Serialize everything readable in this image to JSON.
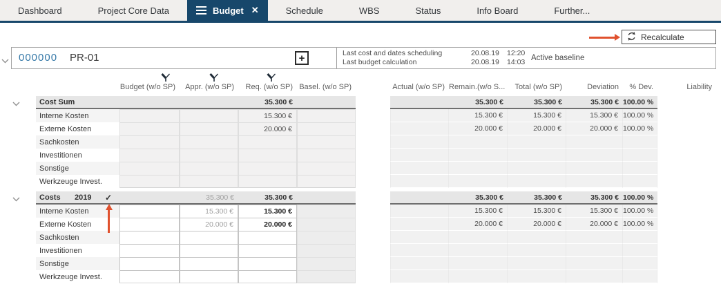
{
  "tabs": [
    {
      "label": "Dashboard",
      "active": false
    },
    {
      "label": "Project Core Data",
      "active": false
    },
    {
      "label": "Budget",
      "active": true
    },
    {
      "label": "Schedule",
      "active": false
    },
    {
      "label": "WBS",
      "active": false
    },
    {
      "label": "Status",
      "active": false
    },
    {
      "label": "Info Board",
      "active": false
    },
    {
      "label": "Further...",
      "active": false
    }
  ],
  "toolbar": {
    "recalculate_label": "Recalculate"
  },
  "icons": {
    "active_tab_menu": "hamburger-icon",
    "active_tab_close": "close-icon",
    "recalculate": "refresh-circular-arrows-icon",
    "project_expand": "chevron-down-icon",
    "add": "plus-icon",
    "column_marker": "funnel-icon",
    "year_confirmed": "check-icon",
    "annotations": "orange-pointer-arrows"
  },
  "project": {
    "number": "000000",
    "name": "PR-01",
    "scheduling": [
      {
        "label": "Last cost and dates scheduling",
        "date": "20.08.19",
        "time": "12:20"
      },
      {
        "label": "Last budget calculation",
        "date": "20.08.19",
        "time": "14:03"
      }
    ],
    "baseline_label": "Active baseline"
  },
  "table": {
    "columns_left": [
      "Budget (w/o SP)",
      "Appr. (w/o SP)",
      "Req. (w/o SP)",
      "Basel. (w/o SP)"
    ],
    "columns_right": [
      "Actual (w/o SP)",
      "Remain.(w/o S...",
      "Total (w/o SP)",
      "Deviation",
      "% Dev.",
      "Liability"
    ],
    "groups": [
      {
        "name": "Cost Sum",
        "year": "",
        "checked": false,
        "header": {
          "budget": "",
          "appr": "",
          "req": "35.300 €",
          "basel": "",
          "actual": "",
          "remain": "35.300 €",
          "total": "35.300 €",
          "deviation": "35.300 €",
          "pdev": "100.00 %",
          "liability": ""
        },
        "rows": [
          {
            "label": "Interne Kosten",
            "budget": "",
            "appr": "",
            "req": "15.300 €",
            "basel": "",
            "actual": "",
            "remain": "15.300 €",
            "total": "15.300 €",
            "deviation": "15.300 €",
            "pdev": "100.00 %",
            "liability": ""
          },
          {
            "label": "Externe Kosten",
            "budget": "",
            "appr": "",
            "req": "20.000 €",
            "basel": "",
            "actual": "",
            "remain": "20.000 €",
            "total": "20.000 €",
            "deviation": "20.000 €",
            "pdev": "100.00 %",
            "liability": ""
          },
          {
            "label": "Sachkosten"
          },
          {
            "label": "Investitionen"
          },
          {
            "label": "Sonstige"
          },
          {
            "label": "Werkzeuge Invest."
          }
        ]
      },
      {
        "name": "Costs",
        "year": "2019",
        "checked": true,
        "header": {
          "budget": "",
          "appr": "35.300 €",
          "req": "35.300 €",
          "basel": "",
          "actual": "",
          "remain": "35.300 €",
          "total": "35.300 €",
          "deviation": "35.300 €",
          "pdev": "100.00 %",
          "liability": ""
        },
        "rows": [
          {
            "label": "Interne Kosten",
            "budget": "",
            "appr": "15.300 €",
            "req": "15.300 €",
            "basel": "",
            "actual": "",
            "remain": "15.300 €",
            "total": "15.300 €",
            "deviation": "15.300 €",
            "pdev": "100.00 %",
            "liability": ""
          },
          {
            "label": "Externe Kosten",
            "budget": "",
            "appr": "20.000 €",
            "req": "20.000 €",
            "basel": "",
            "actual": "",
            "remain": "20.000 €",
            "total": "20.000 €",
            "deviation": "20.000 €",
            "pdev": "100.00 %",
            "liability": ""
          },
          {
            "label": "Sachkosten"
          },
          {
            "label": "Investitionen"
          },
          {
            "label": "Sonstige"
          },
          {
            "label": "Werkzeuge Invest."
          }
        ]
      }
    ]
  },
  "colors": {
    "active_tab": "#17476b",
    "tabbar_bg": "#f1efed",
    "project_number_blue": "#3679a8",
    "arrow_orange": "#e0512e",
    "group_header_bg": "#e6e6e6"
  }
}
